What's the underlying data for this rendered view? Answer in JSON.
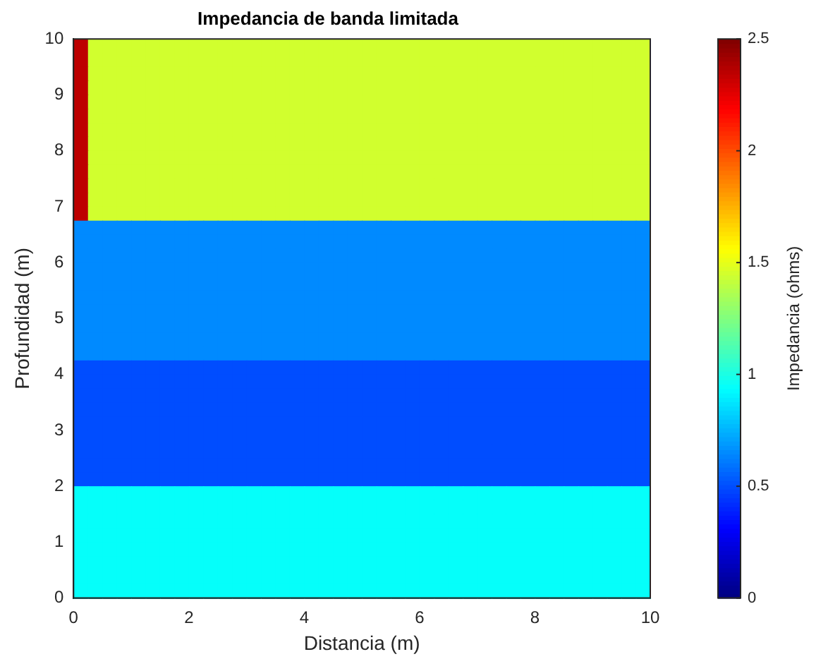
{
  "chart_data": {
    "type": "heatmap",
    "title": "Impedancia de banda limitada",
    "xlabel": "Distancia (m)",
    "ylabel": "Profundidad (m)",
    "clabel": "Impedancia (ohms)",
    "cells": [
      [
        2.35,
        1.45,
        1.45,
        1.45,
        1.45,
        1.45,
        1.45,
        1.45,
        1.45,
        1.45,
        1.45,
        1.45,
        1.45,
        1.45,
        1.45,
        1.45,
        1.45,
        1.45,
        1.45,
        1.45,
        1.45,
        1.45,
        1.45,
        1.45,
        1.45,
        1.45,
        1.45,
        1.45,
        1.45,
        1.45,
        1.45,
        1.45,
        1.45,
        1.45,
        1.45,
        1.45,
        1.45,
        1.45,
        1.45,
        1.45
      ],
      [
        2.35,
        1.45,
        1.45,
        1.45,
        1.45,
        1.45,
        1.45,
        1.45,
        1.45,
        1.45,
        1.45,
        1.45,
        1.45,
        1.45,
        1.45,
        1.45,
        1.45,
        1.45,
        1.45,
        1.45,
        1.45,
        1.45,
        1.45,
        1.45,
        1.45,
        1.45,
        1.45,
        1.45,
        1.45,
        1.45,
        1.45,
        1.45,
        1.45,
        1.45,
        1.45,
        1.45,
        1.45,
        1.45,
        1.45,
        1.45
      ],
      [
        2.35,
        1.45,
        1.45,
        1.45,
        1.45,
        1.45,
        1.45,
        1.45,
        1.45,
        1.45,
        1.45,
        1.45,
        1.45,
        1.45,
        1.45,
        1.45,
        1.45,
        1.45,
        1.45,
        1.45,
        1.45,
        1.45,
        1.45,
        1.45,
        1.45,
        1.45,
        1.45,
        1.45,
        1.45,
        1.45,
        1.45,
        1.45,
        1.45,
        1.45,
        1.45,
        1.45,
        1.45,
        1.45,
        1.45,
        1.45
      ],
      [
        2.35,
        1.45,
        1.45,
        1.45,
        1.45,
        1.45,
        1.45,
        1.45,
        1.45,
        1.45,
        1.45,
        1.45,
        1.45,
        1.45,
        1.45,
        1.45,
        1.45,
        1.45,
        1.45,
        1.45,
        1.45,
        1.45,
        1.45,
        1.45,
        1.45,
        1.45,
        1.45,
        1.45,
        1.45,
        1.45,
        1.45,
        1.45,
        1.45,
        1.45,
        1.45,
        1.45,
        1.45,
        1.45,
        1.45,
        1.45
      ],
      [
        2.35,
        1.45,
        1.45,
        1.45,
        1.45,
        1.45,
        1.45,
        1.45,
        1.45,
        1.45,
        1.45,
        1.45,
        1.45,
        1.45,
        1.45,
        1.45,
        1.45,
        1.45,
        1.45,
        1.45,
        1.45,
        1.45,
        1.45,
        1.45,
        1.45,
        1.45,
        1.45,
        1.45,
        1.45,
        1.45,
        1.45,
        1.45,
        1.45,
        1.45,
        1.45,
        1.45,
        1.45,
        1.45,
        1.45,
        1.45
      ],
      [
        2.35,
        1.45,
        1.45,
        1.45,
        1.45,
        1.45,
        1.45,
        1.45,
        1.45,
        1.45,
        1.45,
        1.45,
        1.45,
        1.45,
        1.45,
        1.45,
        1.45,
        1.45,
        1.45,
        1.45,
        1.45,
        1.45,
        1.45,
        1.45,
        1.45,
        1.45,
        1.45,
        1.45,
        1.45,
        1.45,
        1.45,
        1.45,
        1.45,
        1.45,
        1.45,
        1.45,
        1.45,
        1.45,
        1.45,
        1.45
      ],
      [
        2.35,
        1.45,
        1.45,
        1.45,
        1.45,
        1.45,
        1.45,
        1.45,
        1.45,
        1.45,
        1.45,
        1.45,
        1.45,
        1.45,
        1.45,
        1.45,
        1.45,
        1.45,
        1.45,
        1.45,
        1.45,
        1.45,
        1.45,
        1.45,
        1.45,
        1.45,
        1.45,
        1.45,
        1.45,
        1.45,
        1.45,
        1.45,
        1.45,
        1.45,
        1.45,
        1.45,
        1.45,
        1.45,
        1.45,
        1.45
      ],
      [
        2.35,
        1.45,
        1.45,
        1.45,
        1.45,
        1.45,
        1.45,
        1.45,
        1.45,
        1.45,
        1.45,
        1.45,
        1.45,
        1.45,
        1.45,
        1.45,
        1.45,
        1.45,
        1.45,
        1.45,
        1.45,
        1.45,
        1.45,
        1.45,
        1.45,
        1.45,
        1.45,
        1.45,
        1.45,
        1.45,
        1.45,
        1.45,
        1.45,
        1.45,
        1.45,
        1.45,
        1.45,
        1.45,
        1.45,
        1.45
      ],
      [
        2.35,
        1.45,
        1.45,
        1.45,
        1.45,
        1.45,
        1.45,
        1.45,
        1.45,
        1.45,
        1.45,
        1.45,
        1.45,
        1.45,
        1.45,
        1.45,
        1.45,
        1.45,
        1.45,
        1.45,
        1.45,
        1.45,
        1.45,
        1.45,
        1.45,
        1.45,
        1.45,
        1.45,
        1.45,
        1.45,
        1.45,
        1.45,
        1.45,
        1.45,
        1.45,
        1.45,
        1.45,
        1.45,
        1.45,
        1.45
      ],
      [
        2.35,
        1.45,
        1.45,
        1.45,
        1.45,
        1.45,
        1.45,
        1.45,
        1.45,
        1.45,
        1.45,
        1.45,
        1.45,
        1.45,
        1.45,
        1.45,
        1.45,
        1.45,
        1.45,
        1.45,
        1.45,
        1.45,
        1.45,
        1.45,
        1.45,
        1.45,
        1.45,
        1.45,
        1.45,
        1.45,
        1.45,
        1.45,
        1.45,
        1.45,
        1.45,
        1.45,
        1.45,
        1.45,
        1.45,
        1.45
      ],
      [
        2.35,
        1.45,
        1.45,
        1.45,
        1.45,
        1.45,
        1.45,
        1.45,
        1.45,
        1.45,
        1.45,
        1.45,
        1.45,
        1.45,
        1.45,
        1.45,
        1.45,
        1.45,
        1.45,
        1.45,
        1.45,
        1.45,
        1.45,
        1.45,
        1.45,
        1.45,
        1.45,
        1.45,
        1.45,
        1.45,
        1.45,
        1.45,
        1.45,
        1.45,
        1.45,
        1.45,
        1.45,
        1.45,
        1.45,
        1.45
      ],
      [
        2.35,
        1.45,
        1.45,
        1.45,
        1.45,
        1.45,
        1.45,
        1.45,
        1.45,
        1.45,
        1.45,
        1.45,
        1.45,
        1.45,
        1.45,
        1.45,
        1.45,
        1.45,
        1.45,
        1.45,
        1.45,
        1.45,
        1.45,
        1.45,
        1.45,
        1.45,
        1.45,
        1.45,
        1.45,
        1.45,
        1.45,
        1.45,
        1.45,
        1.45,
        1.45,
        1.45,
        1.45,
        1.45,
        1.45,
        1.45
      ],
      [
        2.35,
        1.45,
        1.45,
        1.45,
        1.45,
        1.45,
        1.45,
        1.45,
        1.45,
        1.45,
        1.45,
        1.45,
        1.45,
        1.45,
        1.45,
        1.45,
        1.45,
        1.45,
        1.45,
        1.45,
        1.45,
        1.45,
        1.45,
        1.45,
        1.45,
        1.45,
        1.45,
        1.45,
        1.45,
        1.45,
        1.45,
        1.45,
        1.45,
        1.45,
        1.45,
        1.45,
        1.45,
        1.45,
        1.45,
        1.45
      ],
      [
        0.65,
        0.65,
        0.65,
        0.65,
        0.65,
        0.65,
        0.65,
        0.65,
        0.65,
        0.65,
        0.65,
        0.65,
        0.65,
        0.65,
        0.65,
        0.65,
        0.65,
        0.65,
        0.65,
        0.65,
        0.65,
        0.65,
        0.65,
        0.65,
        0.65,
        0.65,
        0.65,
        0.65,
        0.65,
        0.65,
        0.65,
        0.65,
        0.65,
        0.65,
        0.65,
        0.65,
        0.65,
        0.65,
        0.65,
        0.65
      ],
      [
        0.65,
        0.65,
        0.65,
        0.65,
        0.65,
        0.65,
        0.65,
        0.65,
        0.65,
        0.65,
        0.65,
        0.65,
        0.65,
        0.65,
        0.65,
        0.65,
        0.65,
        0.65,
        0.65,
        0.65,
        0.65,
        0.65,
        0.65,
        0.65,
        0.65,
        0.65,
        0.65,
        0.65,
        0.65,
        0.65,
        0.65,
        0.65,
        0.65,
        0.65,
        0.65,
        0.65,
        0.65,
        0.65,
        0.65,
        0.65
      ],
      [
        0.65,
        0.65,
        0.65,
        0.65,
        0.65,
        0.65,
        0.65,
        0.65,
        0.65,
        0.65,
        0.65,
        0.65,
        0.65,
        0.65,
        0.65,
        0.65,
        0.65,
        0.65,
        0.65,
        0.65,
        0.65,
        0.65,
        0.65,
        0.65,
        0.65,
        0.65,
        0.65,
        0.65,
        0.65,
        0.65,
        0.65,
        0.65,
        0.65,
        0.65,
        0.65,
        0.65,
        0.65,
        0.65,
        0.65,
        0.65
      ],
      [
        0.65,
        0.65,
        0.65,
        0.65,
        0.65,
        0.65,
        0.65,
        0.65,
        0.65,
        0.65,
        0.65,
        0.65,
        0.65,
        0.65,
        0.65,
        0.65,
        0.65,
        0.65,
        0.65,
        0.65,
        0.65,
        0.65,
        0.65,
        0.65,
        0.65,
        0.65,
        0.65,
        0.65,
        0.65,
        0.65,
        0.65,
        0.65,
        0.65,
        0.65,
        0.65,
        0.65,
        0.65,
        0.65,
        0.65,
        0.65
      ],
      [
        0.65,
        0.65,
        0.65,
        0.65,
        0.65,
        0.65,
        0.65,
        0.65,
        0.65,
        0.65,
        0.65,
        0.65,
        0.65,
        0.65,
        0.65,
        0.65,
        0.65,
        0.65,
        0.65,
        0.65,
        0.65,
        0.65,
        0.65,
        0.65,
        0.65,
        0.65,
        0.65,
        0.65,
        0.65,
        0.65,
        0.65,
        0.65,
        0.65,
        0.65,
        0.65,
        0.65,
        0.65,
        0.65,
        0.65,
        0.65
      ],
      [
        0.65,
        0.65,
        0.65,
        0.65,
        0.65,
        0.65,
        0.65,
        0.65,
        0.65,
        0.65,
        0.65,
        0.65,
        0.65,
        0.65,
        0.65,
        0.65,
        0.65,
        0.65,
        0.65,
        0.65,
        0.65,
        0.65,
        0.65,
        0.65,
        0.65,
        0.65,
        0.65,
        0.65,
        0.65,
        0.65,
        0.65,
        0.65,
        0.65,
        0.65,
        0.65,
        0.65,
        0.65,
        0.65,
        0.65,
        0.65
      ],
      [
        0.65,
        0.65,
        0.65,
        0.65,
        0.65,
        0.65,
        0.65,
        0.65,
        0.65,
        0.65,
        0.65,
        0.65,
        0.65,
        0.65,
        0.65,
        0.65,
        0.65,
        0.65,
        0.65,
        0.65,
        0.65,
        0.65,
        0.65,
        0.65,
        0.65,
        0.65,
        0.65,
        0.65,
        0.65,
        0.65,
        0.65,
        0.65,
        0.65,
        0.65,
        0.65,
        0.65,
        0.65,
        0.65,
        0.65,
        0.65
      ],
      [
        0.65,
        0.65,
        0.65,
        0.65,
        0.65,
        0.65,
        0.65,
        0.65,
        0.65,
        0.65,
        0.65,
        0.65,
        0.65,
        0.65,
        0.65,
        0.65,
        0.65,
        0.65,
        0.65,
        0.65,
        0.65,
        0.65,
        0.65,
        0.65,
        0.65,
        0.65,
        0.65,
        0.65,
        0.65,
        0.65,
        0.65,
        0.65,
        0.65,
        0.65,
        0.65,
        0.65,
        0.65,
        0.65,
        0.65,
        0.65
      ],
      [
        0.65,
        0.65,
        0.65,
        0.65,
        0.65,
        0.65,
        0.65,
        0.65,
        0.65,
        0.65,
        0.65,
        0.65,
        0.65,
        0.65,
        0.65,
        0.65,
        0.65,
        0.65,
        0.65,
        0.65,
        0.65,
        0.65,
        0.65,
        0.65,
        0.65,
        0.65,
        0.65,
        0.65,
        0.65,
        0.65,
        0.65,
        0.65,
        0.65,
        0.65,
        0.65,
        0.65,
        0.65,
        0.65,
        0.65,
        0.65
      ],
      [
        0.65,
        0.65,
        0.65,
        0.65,
        0.65,
        0.65,
        0.65,
        0.65,
        0.65,
        0.65,
        0.65,
        0.65,
        0.65,
        0.65,
        0.65,
        0.65,
        0.65,
        0.65,
        0.65,
        0.65,
        0.65,
        0.65,
        0.65,
        0.65,
        0.65,
        0.65,
        0.65,
        0.65,
        0.65,
        0.65,
        0.65,
        0.65,
        0.65,
        0.65,
        0.65,
        0.65,
        0.65,
        0.65,
        0.65,
        0.65
      ],
      [
        0.5,
        0.5,
        0.5,
        0.5,
        0.5,
        0.5,
        0.5,
        0.5,
        0.5,
        0.5,
        0.5,
        0.5,
        0.5,
        0.5,
        0.5,
        0.5,
        0.5,
        0.5,
        0.5,
        0.5,
        0.5,
        0.5,
        0.5,
        0.5,
        0.5,
        0.5,
        0.5,
        0.5,
        0.5,
        0.5,
        0.5,
        0.5,
        0.5,
        0.5,
        0.5,
        0.5,
        0.5,
        0.5,
        0.5,
        0.5
      ],
      [
        0.5,
        0.5,
        0.5,
        0.5,
        0.5,
        0.5,
        0.5,
        0.5,
        0.5,
        0.5,
        0.5,
        0.5,
        0.5,
        0.5,
        0.5,
        0.5,
        0.5,
        0.5,
        0.5,
        0.5,
        0.5,
        0.5,
        0.5,
        0.5,
        0.5,
        0.5,
        0.5,
        0.5,
        0.5,
        0.5,
        0.5,
        0.5,
        0.5,
        0.5,
        0.5,
        0.5,
        0.5,
        0.5,
        0.5,
        0.5
      ],
      [
        0.5,
        0.5,
        0.5,
        0.5,
        0.5,
        0.5,
        0.5,
        0.5,
        0.5,
        0.5,
        0.5,
        0.5,
        0.5,
        0.5,
        0.5,
        0.5,
        0.5,
        0.5,
        0.5,
        0.5,
        0.5,
        0.5,
        0.5,
        0.5,
        0.5,
        0.5,
        0.5,
        0.5,
        0.5,
        0.5,
        0.5,
        0.5,
        0.5,
        0.5,
        0.5,
        0.5,
        0.5,
        0.5,
        0.5,
        0.5
      ],
      [
        0.5,
        0.5,
        0.5,
        0.5,
        0.5,
        0.5,
        0.5,
        0.5,
        0.5,
        0.5,
        0.5,
        0.5,
        0.5,
        0.5,
        0.5,
        0.5,
        0.5,
        0.5,
        0.5,
        0.5,
        0.5,
        0.5,
        0.5,
        0.5,
        0.5,
        0.5,
        0.5,
        0.5,
        0.5,
        0.5,
        0.5,
        0.5,
        0.5,
        0.5,
        0.5,
        0.5,
        0.5,
        0.5,
        0.5,
        0.5
      ],
      [
        0.5,
        0.5,
        0.5,
        0.5,
        0.5,
        0.5,
        0.5,
        0.5,
        0.5,
        0.5,
        0.5,
        0.5,
        0.5,
        0.5,
        0.5,
        0.5,
        0.5,
        0.5,
        0.5,
        0.5,
        0.5,
        0.5,
        0.5,
        0.5,
        0.5,
        0.5,
        0.5,
        0.5,
        0.5,
        0.5,
        0.5,
        0.5,
        0.5,
        0.5,
        0.5,
        0.5,
        0.5,
        0.5,
        0.5,
        0.5
      ],
      [
        0.5,
        0.5,
        0.5,
        0.5,
        0.5,
        0.5,
        0.5,
        0.5,
        0.5,
        0.5,
        0.5,
        0.5,
        0.5,
        0.5,
        0.5,
        0.5,
        0.5,
        0.5,
        0.5,
        0.5,
        0.5,
        0.5,
        0.5,
        0.5,
        0.5,
        0.5,
        0.5,
        0.5,
        0.5,
        0.5,
        0.5,
        0.5,
        0.5,
        0.5,
        0.5,
        0.5,
        0.5,
        0.5,
        0.5,
        0.5
      ],
      [
        0.5,
        0.5,
        0.5,
        0.5,
        0.5,
        0.5,
        0.5,
        0.5,
        0.5,
        0.5,
        0.5,
        0.5,
        0.5,
        0.5,
        0.5,
        0.5,
        0.5,
        0.5,
        0.5,
        0.5,
        0.5,
        0.5,
        0.5,
        0.5,
        0.5,
        0.5,
        0.5,
        0.5,
        0.5,
        0.5,
        0.5,
        0.5,
        0.5,
        0.5,
        0.5,
        0.5,
        0.5,
        0.5,
        0.5,
        0.5
      ],
      [
        0.5,
        0.5,
        0.5,
        0.5,
        0.5,
        0.5,
        0.5,
        0.5,
        0.5,
        0.5,
        0.5,
        0.5,
        0.5,
        0.5,
        0.5,
        0.5,
        0.5,
        0.5,
        0.5,
        0.5,
        0.5,
        0.5,
        0.5,
        0.5,
        0.5,
        0.5,
        0.5,
        0.5,
        0.5,
        0.5,
        0.5,
        0.5,
        0.5,
        0.5,
        0.5,
        0.5,
        0.5,
        0.5,
        0.5,
        0.5
      ],
      [
        0.5,
        0.5,
        0.5,
        0.5,
        0.5,
        0.5,
        0.5,
        0.5,
        0.5,
        0.5,
        0.5,
        0.5,
        0.5,
        0.5,
        0.5,
        0.5,
        0.5,
        0.5,
        0.5,
        0.5,
        0.5,
        0.5,
        0.5,
        0.5,
        0.5,
        0.5,
        0.5,
        0.5,
        0.5,
        0.5,
        0.5,
        0.5,
        0.5,
        0.5,
        0.5,
        0.5,
        0.5,
        0.5,
        0.5,
        0.5
      ],
      [
        0.95,
        0.95,
        0.95,
        0.95,
        0.95,
        0.95,
        0.95,
        0.95,
        0.95,
        0.95,
        0.95,
        0.95,
        0.95,
        0.95,
        0.95,
        0.95,
        0.95,
        0.95,
        0.95,
        0.95,
        0.95,
        0.95,
        0.95,
        0.95,
        0.95,
        0.95,
        0.95,
        0.95,
        0.95,
        0.95,
        0.95,
        0.95,
        0.95,
        0.95,
        0.95,
        0.95,
        0.95,
        0.95,
        0.95,
        0.95
      ],
      [
        0.95,
        0.95,
        0.95,
        0.95,
        0.95,
        0.95,
        0.95,
        0.95,
        0.95,
        0.95,
        0.95,
        0.95,
        0.95,
        0.95,
        0.95,
        0.95,
        0.95,
        0.95,
        0.95,
        0.95,
        0.95,
        0.95,
        0.95,
        0.95,
        0.95,
        0.95,
        0.95,
        0.95,
        0.95,
        0.95,
        0.95,
        0.95,
        0.95,
        0.95,
        0.95,
        0.95,
        0.95,
        0.95,
        0.95,
        0.95
      ],
      [
        0.95,
        0.95,
        0.95,
        0.95,
        0.95,
        0.95,
        0.95,
        0.95,
        0.95,
        0.95,
        0.95,
        0.95,
        0.95,
        0.95,
        0.95,
        0.95,
        0.95,
        0.95,
        0.95,
        0.95,
        0.95,
        0.95,
        0.95,
        0.95,
        0.95,
        0.95,
        0.95,
        0.95,
        0.95,
        0.95,
        0.95,
        0.95,
        0.95,
        0.95,
        0.95,
        0.95,
        0.95,
        0.95,
        0.95,
        0.95
      ],
      [
        0.95,
        0.95,
        0.95,
        0.95,
        0.95,
        0.95,
        0.95,
        0.95,
        0.95,
        0.95,
        0.95,
        0.95,
        0.95,
        0.95,
        0.95,
        0.95,
        0.95,
        0.95,
        0.95,
        0.95,
        0.95,
        0.95,
        0.95,
        0.95,
        0.95,
        0.95,
        0.95,
        0.95,
        0.95,
        0.95,
        0.95,
        0.95,
        0.95,
        0.95,
        0.95,
        0.95,
        0.95,
        0.95,
        0.95,
        0.95
      ],
      [
        0.95,
        0.95,
        0.95,
        0.95,
        0.95,
        0.95,
        0.95,
        0.95,
        0.95,
        0.95,
        0.95,
        0.95,
        0.95,
        0.95,
        0.95,
        0.95,
        0.95,
        0.95,
        0.95,
        0.95,
        0.95,
        0.95,
        0.95,
        0.95,
        0.95,
        0.95,
        0.95,
        0.95,
        0.95,
        0.95,
        0.95,
        0.95,
        0.95,
        0.95,
        0.95,
        0.95,
        0.95,
        0.95,
        0.95,
        0.95
      ],
      [
        0.95,
        0.95,
        0.95,
        0.95,
        0.95,
        0.95,
        0.95,
        0.95,
        0.95,
        0.95,
        0.95,
        0.95,
        0.95,
        0.95,
        0.95,
        0.95,
        0.95,
        0.95,
        0.95,
        0.95,
        0.95,
        0.95,
        0.95,
        0.95,
        0.95,
        0.95,
        0.95,
        0.95,
        0.95,
        0.95,
        0.95,
        0.95,
        0.95,
        0.95,
        0.95,
        0.95,
        0.95,
        0.95,
        0.95,
        0.95
      ],
      [
        0.95,
        0.95,
        0.95,
        0.95,
        0.95,
        0.95,
        0.95,
        0.95,
        0.95,
        0.95,
        0.95,
        0.95,
        0.95,
        0.95,
        0.95,
        0.95,
        0.95,
        0.95,
        0.95,
        0.95,
        0.95,
        0.95,
        0.95,
        0.95,
        0.95,
        0.95,
        0.95,
        0.95,
        0.95,
        0.95,
        0.95,
        0.95,
        0.95,
        0.95,
        0.95,
        0.95,
        0.95,
        0.95,
        0.95,
        0.95
      ],
      [
        0.95,
        0.95,
        0.95,
        0.95,
        0.95,
        0.95,
        0.95,
        0.95,
        0.95,
        0.95,
        0.95,
        0.95,
        0.95,
        0.95,
        0.95,
        0.95,
        0.95,
        0.95,
        0.95,
        0.95,
        0.95,
        0.95,
        0.95,
        0.95,
        0.95,
        0.95,
        0.95,
        0.95,
        0.95,
        0.95,
        0.95,
        0.95,
        0.95,
        0.95,
        0.95,
        0.95,
        0.95,
        0.95,
        0.95,
        0.95
      ]
    ],
    "xlim": [
      0,
      10
    ],
    "ylim": [
      0,
      10
    ],
    "xticks": [
      0,
      2,
      4,
      6,
      8,
      10
    ],
    "yticks": [
      0,
      1,
      2,
      3,
      4,
      5,
      6,
      7,
      8,
      9,
      10
    ],
    "clim": [
      0,
      2.5
    ],
    "cticks": [
      0,
      0.5,
      1,
      1.5,
      2,
      2.5
    ],
    "grid": false,
    "legend": false
  }
}
